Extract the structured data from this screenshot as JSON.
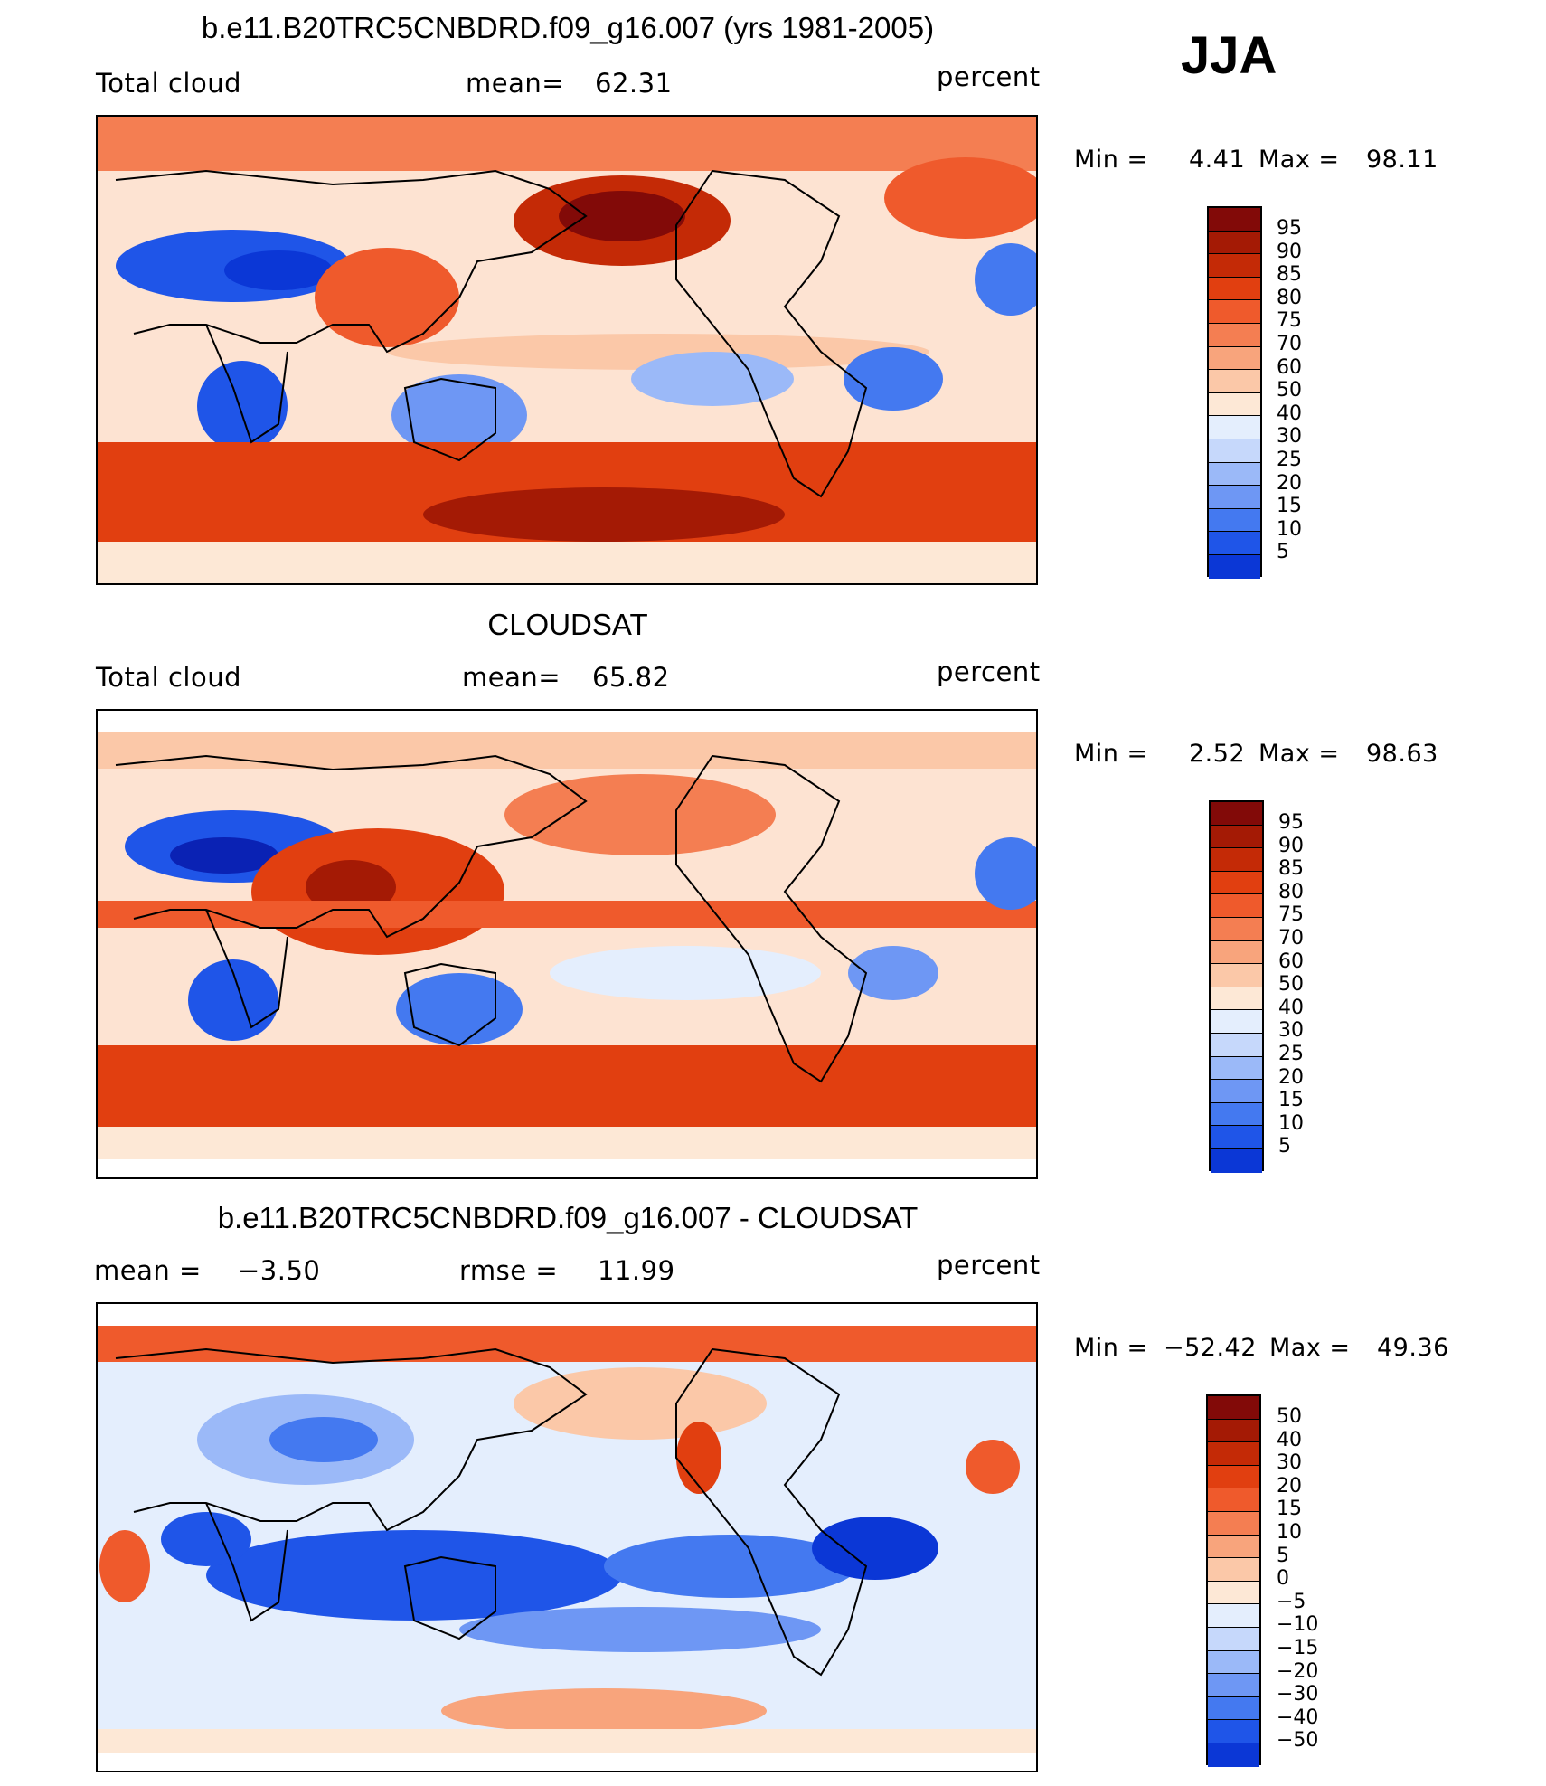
{
  "season": "JJA",
  "colors": {
    "full": [
      "#08088a",
      "#0a22b4",
      "#0b37d6",
      "#1f55e8",
      "#4479f0",
      "#6e97f4",
      "#9bb9f8",
      "#c6d8fb",
      "#e4eefd",
      "#fde8d6",
      "#fbc8a8",
      "#f8a47c",
      "#f47e52",
      "#ef5a2c",
      "#e13f10",
      "#c42a06",
      "#a41a05",
      "#820a08"
    ],
    "diff": [
      "#08088a",
      "#0a22b4",
      "#0b37d6",
      "#1f55e8",
      "#4479f0",
      "#6e97f4",
      "#9bb9f8",
      "#c6d8fb",
      "#e4eefd",
      "#fde8d6",
      "#fbc8a8",
      "#f8a47c",
      "#f47e52",
      "#ef5a2c",
      "#e13f10",
      "#c42a06",
      "#a41a05",
      "#820a08"
    ]
  },
  "panels": [
    {
      "title": "b.e11.B20TRC5CNBDRD.f09_g16.007 (yrs 1981-2005)",
      "left_label": "Total cloud",
      "mid_label": "mean=",
      "mid_value": "62.31",
      "right_label": "percent",
      "min_label": "Min =",
      "min_value": "4.41",
      "max_label": "Max =",
      "max_value": "98.11",
      "colorbar_ticks": [
        "95",
        "90",
        "85",
        "80",
        "75",
        "70",
        "60",
        "50",
        "40",
        "30",
        "25",
        "20",
        "15",
        "10",
        "5"
      ]
    },
    {
      "title": "CLOUDSAT",
      "left_label": "Total cloud",
      "mid_label": "mean=",
      "mid_value": "65.82",
      "right_label": "percent",
      "min_label": "Min =",
      "min_value": "2.52",
      "max_label": "Max =",
      "max_value": "98.63",
      "colorbar_ticks": [
        "95",
        "90",
        "85",
        "80",
        "75",
        "70",
        "60",
        "50",
        "40",
        "30",
        "25",
        "20",
        "15",
        "10",
        "5"
      ]
    },
    {
      "title": "b.e11.B20TRC5CNBDRD.f09_g16.007 - CLOUDSAT",
      "left_label": "mean =",
      "left_value": "−3.50",
      "mid_label": "rmse =",
      "mid_value": "11.99",
      "right_label": "percent",
      "min_label": "Min =",
      "min_value": "−52.42",
      "max_label": "Max =",
      "max_value": "49.36",
      "colorbar_ticks": [
        "50",
        "40",
        "30",
        "20",
        "15",
        "10",
        "5",
        "0",
        "−5",
        "−10",
        "−15",
        "−20",
        "−30",
        "−40",
        "−50"
      ]
    }
  ],
  "chart_data": [
    {
      "type": "heatmap",
      "title": "b.e11.B20TRC5CNBDRD.f09_g16.007 (yrs 1981-2005)",
      "variable": "Total cloud",
      "units": "percent",
      "season": "JJA",
      "mean": 62.31,
      "min": 4.41,
      "max": 98.11,
      "levels": [
        5,
        10,
        15,
        20,
        25,
        30,
        40,
        50,
        60,
        70,
        75,
        80,
        85,
        90,
        95
      ]
    },
    {
      "type": "heatmap",
      "title": "CLOUDSAT",
      "variable": "Total cloud",
      "units": "percent",
      "season": "JJA",
      "mean": 65.82,
      "min": 2.52,
      "max": 98.63,
      "levels": [
        5,
        10,
        15,
        20,
        25,
        30,
        40,
        50,
        60,
        70,
        75,
        80,
        85,
        90,
        95
      ]
    },
    {
      "type": "heatmap",
      "title": "b.e11.B20TRC5CNBDRD.f09_g16.007 - CLOUDSAT",
      "units": "percent",
      "season": "JJA",
      "mean": -3.5,
      "rmse": 11.99,
      "min": -52.42,
      "max": 49.36,
      "levels": [
        -50,
        -40,
        -30,
        -20,
        -15,
        -10,
        -5,
        0,
        5,
        10,
        15,
        20,
        30,
        40,
        50
      ]
    }
  ]
}
